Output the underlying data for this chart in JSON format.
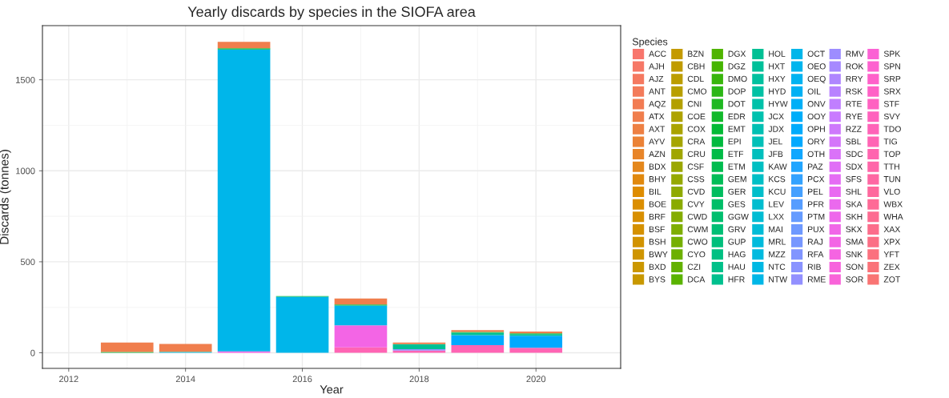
{
  "chart_data": {
    "type": "bar",
    "title": "Yearly discards by species in the SIOFA area",
    "xlabel": "Year",
    "ylabel": "Discards (tonnes)",
    "legend_title": "Species",
    "stacked": true,
    "grid": true,
    "legend": "right",
    "x": [
      2013,
      2014,
      2015,
      2016,
      2017,
      2018,
      2019,
      2020
    ],
    "xlim": [
      2011.55,
      2021.45
    ],
    "xticks": [
      2012,
      2014,
      2016,
      2018,
      2020
    ],
    "ylim": [
      -85.6,
      1797.6
    ],
    "yticks": [
      0,
      500,
      1000,
      1500
    ],
    "series": [
      {
        "name": "ZOT",
        "color": "#f97473",
        "values": [
          null,
          null,
          null,
          null,
          null,
          null,
          null,
          null
        ]
      },
      {
        "name": "ZEX",
        "color": "#fa7278",
        "values": [
          null,
          null,
          null,
          null,
          null,
          null,
          null,
          null
        ]
      },
      {
        "name": "YFT",
        "color": "#fb717e",
        "values": [
          null,
          null,
          null,
          null,
          null,
          null,
          null,
          null
        ]
      },
      {
        "name": "XPX",
        "color": "#fb6f85",
        "values": [
          null,
          null,
          null,
          null,
          null,
          null,
          null,
          null
        ]
      },
      {
        "name": "XAX",
        "color": "#fc6d8b",
        "values": [
          null,
          null,
          null,
          null,
          null,
          null,
          null,
          null
        ]
      },
      {
        "name": "WHA",
        "color": "#fd6b91",
        "values": [
          null,
          null,
          null,
          null,
          null,
          null,
          null,
          null
        ]
      },
      {
        "name": "WBX",
        "color": "#fe6a96",
        "values": [
          null,
          null,
          null,
          null,
          null,
          null,
          null,
          null
        ]
      },
      {
        "name": "VLO",
        "color": "#fe689d",
        "values": [
          null,
          null,
          null,
          null,
          null,
          null,
          null,
          null
        ]
      },
      {
        "name": "TUN",
        "color": "#fe67a3",
        "values": [
          null,
          null,
          null,
          null,
          null,
          null,
          null,
          null
        ]
      },
      {
        "name": "TTH",
        "color": "#ff66a9",
        "values": [
          null,
          null,
          null,
          null,
          null,
          null,
          null,
          null
        ]
      },
      {
        "name": "TOP",
        "color": "#ff64af",
        "values": [
          null,
          null,
          null,
          null,
          null,
          null,
          null,
          null
        ]
      },
      {
        "name": "TIG",
        "color": "#ff64b4",
        "values": [
          null,
          null,
          null,
          null,
          30,
          12,
          42,
          28
        ]
      },
      {
        "name": "TDO",
        "color": "#ff63b8",
        "values": [
          null,
          null,
          null,
          null,
          null,
          null,
          null,
          null
        ]
      },
      {
        "name": "SVY",
        "color": "#ff62bd",
        "values": [
          null,
          null,
          null,
          null,
          null,
          null,
          null,
          null
        ]
      },
      {
        "name": "STF",
        "color": "#ff62c1",
        "values": [
          null,
          null,
          null,
          null,
          null,
          null,
          null,
          null
        ]
      },
      {
        "name": "SRX",
        "color": "#ff61c6",
        "values": [
          null,
          null,
          null,
          null,
          null,
          null,
          null,
          null
        ]
      },
      {
        "name": "SRP",
        "color": "#ff61ca",
        "values": [
          null,
          null,
          null,
          null,
          null,
          null,
          null,
          null
        ]
      },
      {
        "name": "SPN",
        "color": "#fd62cf",
        "values": [
          null,
          null,
          null,
          null,
          null,
          null,
          null,
          null
        ]
      },
      {
        "name": "SPK",
        "color": "#fb62d4",
        "values": [
          null,
          null,
          null,
          null,
          null,
          null,
          null,
          null
        ]
      },
      {
        "name": "SOR",
        "color": "#f963d9",
        "values": [
          null,
          null,
          null,
          null,
          null,
          null,
          null,
          null
        ]
      },
      {
        "name": "SON",
        "color": "#f763dd",
        "values": [
          null,
          null,
          null,
          null,
          null,
          null,
          null,
          null
        ]
      },
      {
        "name": "SNK",
        "color": "#f564e2",
        "values": [
          null,
          null,
          null,
          null,
          null,
          null,
          null,
          null
        ]
      },
      {
        "name": "SMA",
        "color": "#f365e5",
        "values": [
          null,
          null,
          8,
          null,
          121,
          null,
          null,
          null
        ]
      },
      {
        "name": "SKX",
        "color": "#f166e8",
        "values": [
          null,
          null,
          null,
          null,
          null,
          null,
          null,
          null
        ]
      },
      {
        "name": "SKH",
        "color": "#ee68eb",
        "values": [
          null,
          null,
          null,
          null,
          null,
          null,
          null,
          null
        ]
      },
      {
        "name": "SKA",
        "color": "#eb69ee",
        "values": [
          null,
          null,
          null,
          null,
          null,
          null,
          null,
          null
        ]
      },
      {
        "name": "SHL",
        "color": "#e96af1",
        "values": [
          null,
          null,
          null,
          null,
          null,
          null,
          null,
          null
        ]
      },
      {
        "name": "SFS",
        "color": "#e56cf4",
        "values": [
          null,
          null,
          null,
          null,
          null,
          null,
          null,
          null
        ]
      },
      {
        "name": "SDX",
        "color": "#e06ff6",
        "values": [
          null,
          null,
          null,
          null,
          null,
          null,
          null,
          null
        ]
      },
      {
        "name": "SDC",
        "color": "#da72f8",
        "values": [
          null,
          null,
          null,
          null,
          null,
          null,
          null,
          null
        ]
      },
      {
        "name": "SBL",
        "color": "#d475fa",
        "values": [
          null,
          null,
          null,
          null,
          null,
          null,
          null,
          null
        ]
      },
      {
        "name": "RZZ",
        "color": "#ce78fc",
        "values": [
          null,
          null,
          null,
          null,
          null,
          null,
          null,
          null
        ]
      },
      {
        "name": "RYE",
        "color": "#c97bff",
        "values": [
          null,
          null,
          null,
          null,
          null,
          null,
          null,
          null
        ]
      },
      {
        "name": "RTE",
        "color": "#c07fff",
        "values": [
          null,
          null,
          null,
          null,
          null,
          null,
          null,
          null
        ]
      },
      {
        "name": "RSK",
        "color": "#b882ff",
        "values": [
          null,
          null,
          null,
          null,
          null,
          null,
          null,
          null
        ]
      },
      {
        "name": "RRY",
        "color": "#af86ff",
        "values": [
          null,
          null,
          null,
          null,
          null,
          null,
          null,
          null
        ]
      },
      {
        "name": "ROK",
        "color": "#a689ff",
        "values": [
          null,
          null,
          null,
          null,
          null,
          null,
          null,
          null
        ]
      },
      {
        "name": "RMV",
        "color": "#9d8dff",
        "values": [
          null,
          null,
          null,
          null,
          null,
          null,
          null,
          null
        ]
      },
      {
        "name": "RME",
        "color": "#9390ff",
        "values": [
          null,
          null,
          null,
          null,
          null,
          null,
          null,
          null
        ]
      },
      {
        "name": "RIB",
        "color": "#8a93ff",
        "values": [
          null,
          null,
          null,
          null,
          null,
          8,
          null,
          null
        ]
      },
      {
        "name": "RFA",
        "color": "#8195ff",
        "values": [
          null,
          null,
          null,
          null,
          null,
          null,
          null,
          null
        ]
      },
      {
        "name": "RAJ",
        "color": "#7797ff",
        "values": [
          null,
          null,
          null,
          null,
          null,
          null,
          null,
          null
        ]
      },
      {
        "name": "PUX",
        "color": "#6e99ff",
        "values": [
          null,
          null,
          null,
          null,
          null,
          null,
          null,
          null
        ]
      },
      {
        "name": "PTM",
        "color": "#659bff",
        "values": [
          null,
          null,
          null,
          null,
          null,
          null,
          null,
          null
        ]
      },
      {
        "name": "PFR",
        "color": "#569dff",
        "values": [
          null,
          null,
          null,
          null,
          null,
          null,
          null,
          null
        ]
      },
      {
        "name": "PEL",
        "color": "#45a0ff",
        "values": [
          null,
          null,
          null,
          null,
          null,
          null,
          null,
          null
        ]
      },
      {
        "name": "PCX",
        "color": "#33a2ff",
        "values": [
          null,
          null,
          null,
          null,
          null,
          null,
          null,
          null
        ]
      },
      {
        "name": "PAZ",
        "color": "#21a5ff",
        "values": [
          null,
          null,
          null,
          null,
          null,
          null,
          null,
          null
        ]
      },
      {
        "name": "OTH",
        "color": "#10a7ff",
        "values": [
          null,
          null,
          null,
          null,
          null,
          null,
          null,
          null
        ]
      },
      {
        "name": "ORY",
        "color": "#00a9ff",
        "values": [
          null,
          null,
          null,
          null,
          null,
          null,
          55,
          66
        ]
      },
      {
        "name": "OPH",
        "color": "#00abfc",
        "values": [
          null,
          null,
          null,
          null,
          null,
          null,
          null,
          null
        ]
      },
      {
        "name": "OOY",
        "color": "#00adf9",
        "values": [
          null,
          null,
          null,
          null,
          null,
          null,
          null,
          null
        ]
      },
      {
        "name": "ONV",
        "color": "#00aff7",
        "values": [
          null,
          null,
          null,
          null,
          null,
          null,
          null,
          null
        ]
      },
      {
        "name": "OIL",
        "color": "#00b1f4",
        "values": [
          null,
          null,
          null,
          null,
          null,
          null,
          null,
          null
        ]
      },
      {
        "name": "OEQ",
        "color": "#00b3f1",
        "values": [
          null,
          null,
          null,
          null,
          null,
          null,
          null,
          null
        ]
      },
      {
        "name": "OEO",
        "color": "#00b5ee",
        "values": [
          null,
          null,
          null,
          null,
          null,
          null,
          null,
          null
        ]
      },
      {
        "name": "OCT",
        "color": "#00b6ea",
        "values": [
          null,
          3,
          1659,
          308,
          109,
          null,
          null,
          null
        ]
      },
      {
        "name": "NTW",
        "color": "#00b7e7",
        "values": [
          null,
          null,
          null,
          null,
          null,
          null,
          null,
          null
        ]
      },
      {
        "name": "NTC",
        "color": "#00b8e3",
        "values": [
          null,
          null,
          null,
          null,
          null,
          null,
          null,
          null
        ]
      },
      {
        "name": "MZZ",
        "color": "#00badf",
        "values": [
          null,
          null,
          null,
          null,
          null,
          null,
          null,
          null
        ]
      },
      {
        "name": "MRL",
        "color": "#00bbdc",
        "values": [
          null,
          null,
          null,
          null,
          null,
          null,
          null,
          null
        ]
      },
      {
        "name": "MAI",
        "color": "#00bcd7",
        "values": [
          null,
          null,
          null,
          null,
          null,
          null,
          null,
          null
        ]
      },
      {
        "name": "LXX",
        "color": "#00bcd3",
        "values": [
          null,
          null,
          null,
          null,
          null,
          null,
          null,
          null
        ]
      },
      {
        "name": "LEV",
        "color": "#00bdcf",
        "values": [
          null,
          null,
          null,
          null,
          null,
          null,
          null,
          null
        ]
      },
      {
        "name": "KCU",
        "color": "#00beca",
        "values": [
          null,
          null,
          null,
          null,
          null,
          null,
          null,
          null
        ]
      },
      {
        "name": "KCS",
        "color": "#00bfc6",
        "values": [
          null,
          null,
          null,
          null,
          null,
          null,
          null,
          null
        ]
      },
      {
        "name": "KAW",
        "color": "#00bfc2",
        "values": [
          null,
          null,
          null,
          null,
          null,
          null,
          null,
          null
        ]
      },
      {
        "name": "JFB",
        "color": "#00bfbd",
        "values": [
          null,
          null,
          null,
          null,
          null,
          null,
          null,
          null
        ]
      },
      {
        "name": "JEL",
        "color": "#00c0b8",
        "values": [
          null,
          null,
          null,
          null,
          null,
          null,
          null,
          null
        ]
      },
      {
        "name": "JDX",
        "color": "#00c0b3",
        "values": [
          null,
          null,
          null,
          null,
          null,
          null,
          null,
          null
        ]
      },
      {
        "name": "JCX",
        "color": "#00c1ae",
        "values": [
          null,
          null,
          null,
          null,
          null,
          null,
          null,
          null
        ]
      },
      {
        "name": "HYW",
        "color": "#00c1a9",
        "values": [
          null,
          null,
          null,
          null,
          null,
          null,
          null,
          null
        ]
      },
      {
        "name": "HYD",
        "color": "#00c1a4",
        "values": [
          null,
          null,
          null,
          null,
          null,
          null,
          null,
          null
        ]
      },
      {
        "name": "HXY",
        "color": "#00c19f",
        "values": [
          null,
          null,
          null,
          null,
          null,
          null,
          null,
          null
        ]
      },
      {
        "name": "HXT",
        "color": "#00c099",
        "values": [
          null,
          null,
          null,
          null,
          null,
          null,
          null,
          null
        ]
      },
      {
        "name": "HOL",
        "color": "#00c094",
        "values": [
          null,
          3,
          null,
          null,
          null,
          28,
          13,
          8
        ]
      },
      {
        "name": "HFR",
        "color": "#00c08e",
        "values": [
          null,
          null,
          null,
          null,
          null,
          null,
          null,
          null
        ]
      },
      {
        "name": "HAU",
        "color": "#00c089",
        "values": [
          null,
          null,
          null,
          null,
          null,
          null,
          null,
          null
        ]
      },
      {
        "name": "HAG",
        "color": "#00c082",
        "values": [
          null,
          null,
          null,
          null,
          null,
          null,
          null,
          null
        ]
      },
      {
        "name": "GUP",
        "color": "#00bf7c",
        "values": [
          null,
          null,
          null,
          null,
          null,
          null,
          null,
          null
        ]
      },
      {
        "name": "GRV",
        "color": "#00bf75",
        "values": [
          null,
          null,
          null,
          null,
          null,
          null,
          null,
          null
        ]
      },
      {
        "name": "GGW",
        "color": "#00be6e",
        "values": [
          null,
          null,
          null,
          null,
          null,
          null,
          null,
          null
        ]
      },
      {
        "name": "GES",
        "color": "#00be68",
        "values": [
          null,
          null,
          null,
          null,
          null,
          null,
          null,
          null
        ]
      },
      {
        "name": "GER",
        "color": "#00bd5f",
        "values": [
          null,
          null,
          null,
          null,
          null,
          null,
          null,
          null
        ]
      },
      {
        "name": "GEM",
        "color": "#00bd57",
        "values": [
          null,
          null,
          null,
          null,
          null,
          null,
          null,
          null
        ]
      },
      {
        "name": "ETM",
        "color": "#00bc4f",
        "values": [
          null,
          null,
          null,
          null,
          null,
          null,
          null,
          null
        ]
      },
      {
        "name": "ETF",
        "color": "#00bb46",
        "values": [
          null,
          null,
          null,
          null,
          null,
          null,
          null,
          null
        ]
      },
      {
        "name": "EPI",
        "color": "#00ba3e",
        "values": [
          5,
          null,
          6,
          4,
          5,
          null,
          5,
          5
        ]
      },
      {
        "name": "EMT",
        "color": "#04ba35",
        "values": [
          null,
          null,
          null,
          null,
          null,
          null,
          null,
          null
        ]
      },
      {
        "name": "EDR",
        "color": "#12b92b",
        "values": [
          null,
          null,
          null,
          null,
          null,
          null,
          null,
          null
        ]
      },
      {
        "name": "DOT",
        "color": "#1fb821",
        "values": [
          null,
          null,
          null,
          null,
          null,
          null,
          null,
          null
        ]
      },
      {
        "name": "DOP",
        "color": "#2cb716",
        "values": [
          null,
          null,
          null,
          null,
          null,
          null,
          null,
          null
        ]
      },
      {
        "name": "DMO",
        "color": "#39b60c",
        "values": [
          null,
          null,
          null,
          null,
          null,
          null,
          null,
          null
        ]
      },
      {
        "name": "DGZ",
        "color": "#46b502",
        "values": [
          null,
          null,
          null,
          null,
          null,
          null,
          null,
          null
        ]
      },
      {
        "name": "DGX",
        "color": "#50b400",
        "values": [
          null,
          null,
          null,
          null,
          null,
          null,
          null,
          null
        ]
      },
      {
        "name": "DCA",
        "color": "#5ab300",
        "values": [
          null,
          null,
          null,
          null,
          null,
          null,
          null,
          null
        ]
      },
      {
        "name": "CZI",
        "color": "#63b100",
        "values": [
          null,
          null,
          null,
          null,
          null,
          null,
          null,
          null
        ]
      },
      {
        "name": "CYO",
        "color": "#6cb000",
        "values": [
          null,
          null,
          null,
          null,
          null,
          null,
          null,
          null
        ]
      },
      {
        "name": "CWO",
        "color": "#75af00",
        "values": [
          null,
          null,
          null,
          null,
          null,
          null,
          null,
          null
        ]
      },
      {
        "name": "CWM",
        "color": "#7eae00",
        "values": [
          null,
          null,
          null,
          null,
          null,
          null,
          null,
          null
        ]
      },
      {
        "name": "CWD",
        "color": "#84ac00",
        "values": [
          null,
          null,
          null,
          null,
          null,
          null,
          null,
          null
        ]
      },
      {
        "name": "CVY",
        "color": "#8aab00",
        "values": [
          null,
          null,
          null,
          null,
          null,
          null,
          null,
          null
        ]
      },
      {
        "name": "CVD",
        "color": "#8faa00",
        "values": [
          null,
          null,
          null,
          null,
          null,
          null,
          null,
          null
        ]
      },
      {
        "name": "CSS",
        "color": "#95a900",
        "values": [
          null,
          null,
          null,
          null,
          null,
          null,
          null,
          null
        ]
      },
      {
        "name": "CSF",
        "color": "#9ba700",
        "values": [
          null,
          null,
          null,
          null,
          null,
          null,
          null,
          null
        ]
      },
      {
        "name": "CRU",
        "color": "#a0a600",
        "values": [
          null,
          null,
          null,
          null,
          null,
          null,
          null,
          null
        ]
      },
      {
        "name": "CRA",
        "color": "#a5a500",
        "values": [
          null,
          null,
          null,
          null,
          null,
          null,
          null,
          null
        ]
      },
      {
        "name": "COX",
        "color": "#aaa300",
        "values": [
          null,
          null,
          null,
          null,
          null,
          null,
          null,
          null
        ]
      },
      {
        "name": "COE",
        "color": "#aea200",
        "values": [
          null,
          null,
          null,
          null,
          null,
          null,
          null,
          null
        ]
      },
      {
        "name": "CNI",
        "color": "#b3a000",
        "values": [
          null,
          null,
          null,
          null,
          null,
          null,
          null,
          null
        ]
      },
      {
        "name": "CMO",
        "color": "#b89f00",
        "values": [
          null,
          null,
          null,
          null,
          null,
          null,
          null,
          null
        ]
      },
      {
        "name": "CDL",
        "color": "#bc9d00",
        "values": [
          null,
          null,
          null,
          null,
          null,
          null,
          null,
          null
        ]
      },
      {
        "name": "CBH",
        "color": "#c09b00",
        "values": [
          null,
          null,
          null,
          null,
          null,
          null,
          null,
          null
        ]
      },
      {
        "name": "BZN",
        "color": "#c49a00",
        "values": [
          null,
          null,
          null,
          null,
          null,
          null,
          null,
          null
        ]
      },
      {
        "name": "BYS",
        "color": "#c89800",
        "values": [
          null,
          null,
          null,
          null,
          null,
          null,
          null,
          null
        ]
      },
      {
        "name": "BXD",
        "color": "#cb9700",
        "values": [
          null,
          null,
          null,
          null,
          null,
          null,
          null,
          null
        ]
      },
      {
        "name": "BWY",
        "color": "#cf9500",
        "values": [
          null,
          null,
          null,
          null,
          null,
          null,
          null,
          null
        ]
      },
      {
        "name": "BSH",
        "color": "#d29300",
        "values": [
          null,
          null,
          null,
          null,
          null,
          null,
          null,
          null
        ]
      },
      {
        "name": "BSF",
        "color": "#d59100",
        "values": [
          null,
          null,
          null,
          null,
          null,
          null,
          null,
          null
        ]
      },
      {
        "name": "BRF",
        "color": "#d88f00",
        "values": [
          null,
          null,
          null,
          null,
          null,
          null,
          null,
          null
        ]
      },
      {
        "name": "BOE",
        "color": "#db8e00",
        "values": [
          null,
          null,
          null,
          null,
          null,
          null,
          null,
          null
        ]
      },
      {
        "name": "BIL",
        "color": "#de8c00",
        "values": [
          null,
          null,
          null,
          null,
          null,
          null,
          null,
          null
        ]
      },
      {
        "name": "BHY",
        "color": "#e1890e",
        "values": [
          null,
          null,
          null,
          null,
          null,
          null,
          null,
          null
        ]
      },
      {
        "name": "BDX",
        "color": "#e4871c",
        "values": [
          null,
          null,
          null,
          null,
          null,
          null,
          null,
          null
        ]
      },
      {
        "name": "AZN",
        "color": "#e88529",
        "values": [
          null,
          null,
          null,
          null,
          null,
          null,
          null,
          null
        ]
      },
      {
        "name": "AYV",
        "color": "#eb8236",
        "values": [
          null,
          null,
          null,
          null,
          null,
          null,
          null,
          null
        ]
      },
      {
        "name": "AXT",
        "color": "#ee8043",
        "values": [
          null,
          null,
          null,
          null,
          null,
          null,
          null,
          null
        ]
      },
      {
        "name": "ATX",
        "color": "#f07e4d",
        "values": [
          51,
          43,
          36,
          null,
          33,
          8,
          10,
          10
        ]
      },
      {
        "name": "AQZ",
        "color": "#f27c53",
        "values": [
          null,
          null,
          null,
          null,
          null,
          null,
          null,
          null
        ]
      },
      {
        "name": "ANT",
        "color": "#f37b5a",
        "values": [
          null,
          null,
          null,
          null,
          null,
          null,
          null,
          null
        ]
      },
      {
        "name": "AJZ",
        "color": "#f57960",
        "values": [
          null,
          null,
          null,
          null,
          null,
          null,
          null,
          null
        ]
      },
      {
        "name": "AJH",
        "color": "#f67867",
        "values": [
          null,
          null,
          null,
          null,
          null,
          null,
          null,
          null
        ]
      },
      {
        "name": "ACC",
        "color": "#f8766d",
        "values": [
          null,
          null,
          null,
          null,
          null,
          null,
          null,
          null
        ]
      }
    ]
  }
}
